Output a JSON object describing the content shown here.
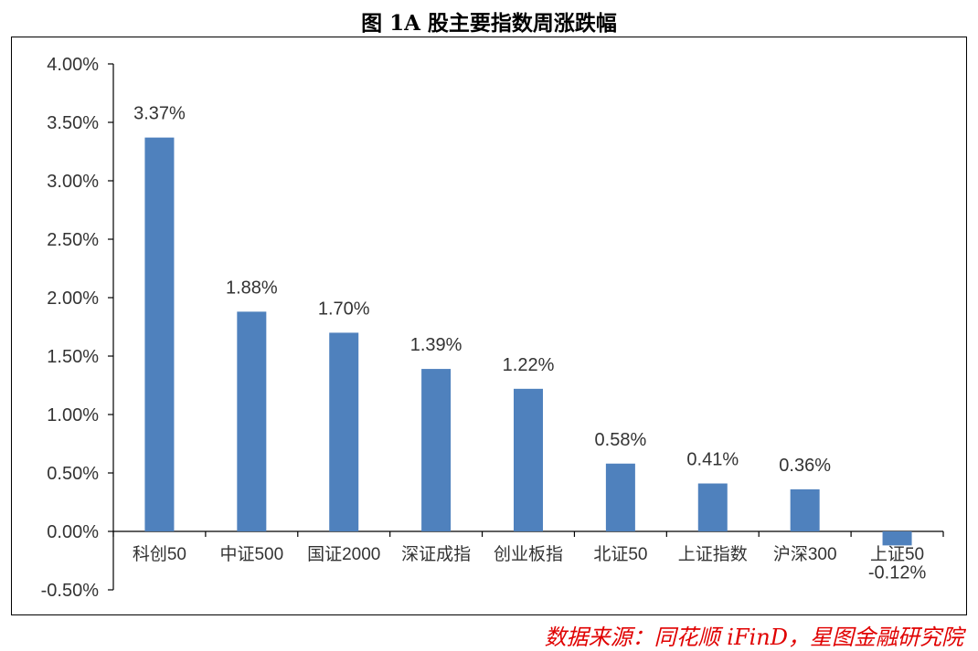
{
  "title": "图 1A 股主要指数周涨跌幅",
  "source": "数据来源：同花顺 iFinD，星图金融研究院",
  "colors": {
    "bar": "#4f81bd",
    "axis": "#000000",
    "text": "#333333",
    "source": "#e00000"
  },
  "chart_data": {
    "type": "bar",
    "title": "图 1A 股主要指数周涨跌幅",
    "xlabel": "",
    "ylabel": "",
    "ylim": [
      -0.5,
      4.0
    ],
    "yticks": [
      "4.00%",
      "3.50%",
      "3.00%",
      "2.50%",
      "2.00%",
      "1.50%",
      "1.00%",
      "0.50%",
      "0.00%",
      "-0.50%"
    ],
    "ytick_values": [
      4.0,
      3.5,
      3.0,
      2.5,
      2.0,
      1.5,
      1.0,
      0.5,
      0.0,
      -0.5
    ],
    "grid": false,
    "legend": "none",
    "categories": [
      "科创50",
      "中证500",
      "国证2000",
      "深证成指",
      "创业板指",
      "北证50",
      "上证指数",
      "沪深300",
      "上证50"
    ],
    "values": [
      3.37,
      1.88,
      1.7,
      1.39,
      1.22,
      0.58,
      0.41,
      0.36,
      -0.12
    ],
    "data_labels": [
      "3.37%",
      "1.88%",
      "1.70%",
      "1.39%",
      "1.22%",
      "0.58%",
      "0.41%",
      "0.36%",
      "-0.12%"
    ]
  }
}
